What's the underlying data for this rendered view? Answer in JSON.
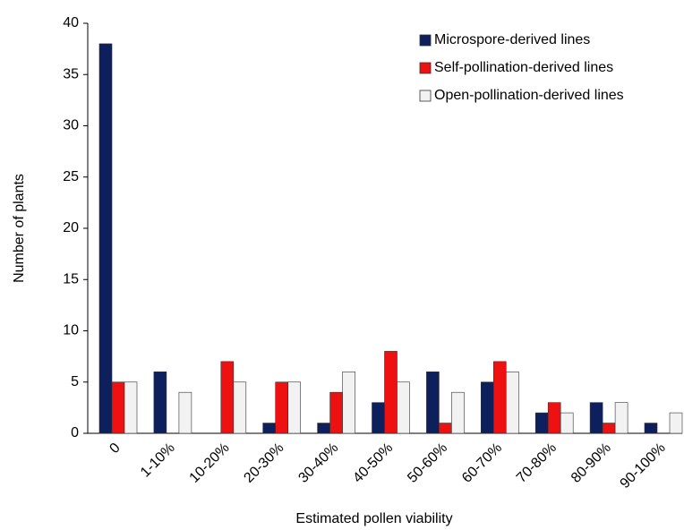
{
  "chart_data": {
    "type": "bar",
    "xlabel": "Estimated pollen viability",
    "ylabel": "Number of plants",
    "categories": [
      "0",
      "1-10%",
      "10-20%",
      "20-30%",
      "30-40%",
      "40-50%",
      "50-60%",
      "60-70%",
      "70-80%",
      "80-90%",
      "90-100%"
    ],
    "series": [
      {
        "name": "Microspore-derived lines",
        "color": "#0d1f5c",
        "values": [
          38,
          6,
          0,
          1,
          1,
          3,
          6,
          5,
          2,
          3,
          1
        ]
      },
      {
        "name": "Self-pollination-derived lines",
        "color": "#ee1111",
        "values": [
          5,
          0,
          7,
          5,
          4,
          8,
          1,
          7,
          3,
          1,
          0
        ]
      },
      {
        "name": "Open-pollination-derived lines",
        "color": "#f2f2f2",
        "values": [
          5,
          4,
          5,
          5,
          6,
          5,
          4,
          6,
          2,
          3,
          2
        ]
      }
    ],
    "ylim": [
      0,
      40
    ],
    "yticks": [
      0,
      5,
      10,
      15,
      20,
      25,
      30,
      35,
      40
    ],
    "grid": false,
    "legend": "upper right"
  }
}
